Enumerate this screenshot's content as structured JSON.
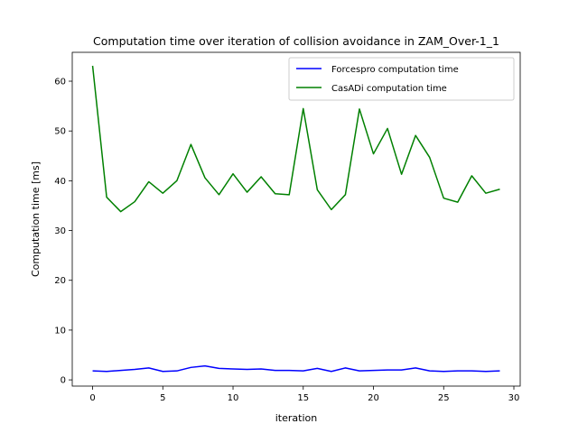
{
  "chart_data": {
    "type": "line",
    "title": "Computation time over iteration of collision avoidance in ZAM_Over-1_1",
    "xlabel": "iteration",
    "ylabel": "Computation time [ms]",
    "xlim": [
      -1.45,
      30.45
    ],
    "ylim": [
      -1.25,
      65.8
    ],
    "xticks": [
      0,
      5,
      10,
      15,
      20,
      25,
      30
    ],
    "yticks": [
      0,
      10,
      20,
      30,
      40,
      50,
      60
    ],
    "grid": false,
    "legend_position": "top-right",
    "x": [
      0,
      1,
      2,
      3,
      4,
      5,
      6,
      7,
      8,
      9,
      10,
      11,
      12,
      13,
      14,
      15,
      16,
      17,
      18,
      19,
      20,
      21,
      22,
      23,
      24,
      25,
      26,
      27,
      28,
      29
    ],
    "series": [
      {
        "name": "Forcespro computation time",
        "color": "#0000ff",
        "values": [
          1.8,
          1.7,
          1.9,
          2.1,
          2.4,
          1.7,
          1.8,
          2.5,
          2.8,
          2.3,
          2.2,
          2.1,
          2.2,
          1.9,
          1.9,
          1.8,
          2.3,
          1.7,
          2.4,
          1.8,
          1.9,
          2.0,
          2.0,
          2.4,
          1.8,
          1.7,
          1.8,
          1.8,
          1.7,
          1.8
        ]
      },
      {
        "name": "CasADi computation time",
        "color": "#008000",
        "values": [
          63.1,
          36.7,
          33.8,
          35.8,
          39.8,
          37.5,
          40.0,
          47.3,
          40.6,
          37.2,
          41.4,
          37.7,
          40.8,
          37.4,
          37.2,
          54.5,
          38.2,
          34.2,
          37.2,
          54.4,
          45.4,
          50.5,
          41.3,
          49.1,
          44.7,
          36.5,
          35.7,
          41.0,
          37.5,
          38.3
        ]
      }
    ]
  }
}
